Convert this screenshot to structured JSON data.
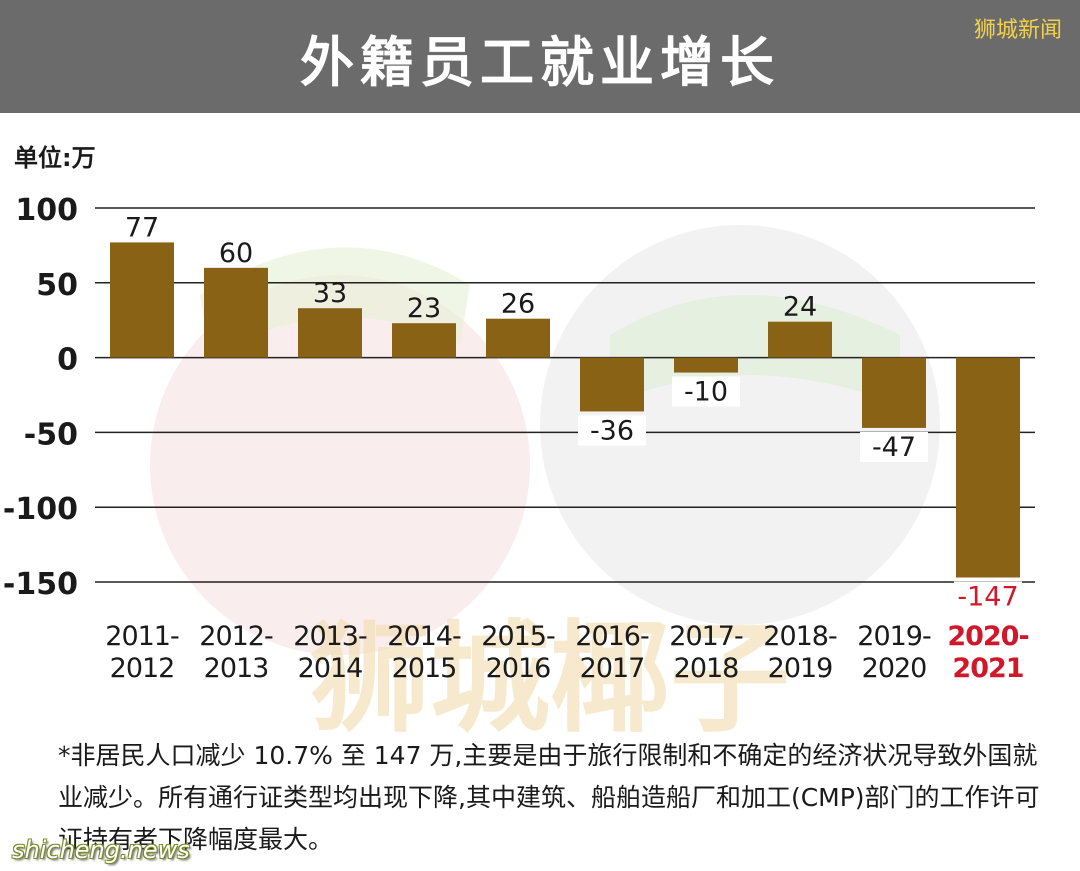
{
  "header": {
    "title": "外籍员工就业增长",
    "brand": "狮城新闻"
  },
  "unit_label": "单位:万",
  "footnote": "*非居民人口减少 10.7% 至 147 万,主要是由于旅行限制和不确定的经济状况导致外国就业减少。所有通行证类型均出现下降,其中建筑、船舶造船厂和加工(CMP)部门的工作许可证持有者下降幅度最大。",
  "site_watermark": "shicheng.news",
  "watermark_text": "狮城椰子",
  "colors": {
    "bar": "#8a6216",
    "highlight": "#d0182a",
    "header": "#6b6b6b",
    "brand": "#f2d24a"
  },
  "chart_data": {
    "type": "bar",
    "title": "外籍员工就业增长",
    "ylabel": "单位:万",
    "xlabel": "",
    "ylim": [
      -150,
      100
    ],
    "yticks": [
      100,
      50,
      0,
      -50,
      -100,
      -150
    ],
    "grid": true,
    "categories": [
      [
        "2011-",
        "2012"
      ],
      [
        "2012-",
        "2013"
      ],
      [
        "2013-",
        "2014"
      ],
      [
        "2014-",
        "2015"
      ],
      [
        "2015-",
        "2016"
      ],
      [
        "2016-",
        "2017"
      ],
      [
        "2017-",
        "2018"
      ],
      [
        "2018-",
        "2019"
      ],
      [
        "2019-",
        "2020"
      ],
      [
        "2020-",
        "2021"
      ]
    ],
    "values": [
      77,
      60,
      33,
      23,
      26,
      -36,
      -10,
      24,
      -47,
      -147
    ],
    "highlight_index": 9
  }
}
